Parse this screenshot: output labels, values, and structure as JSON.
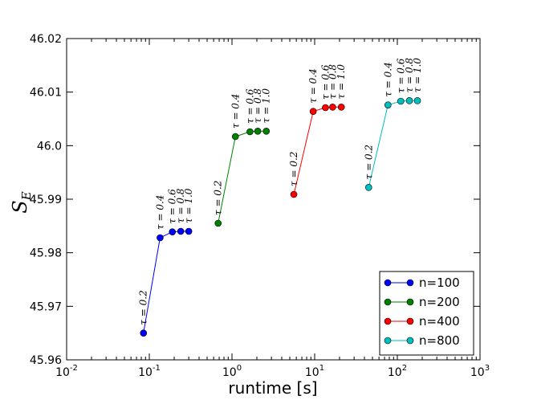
{
  "chart_data": {
    "type": "line",
    "title": "",
    "xlabel": "runtime [s]",
    "ylabel": "S_E",
    "xscale": "log",
    "xlim": [
      0.01,
      1000
    ],
    "ylim": [
      45.96,
      46.02
    ],
    "x_ticks": [
      {
        "value": 0.01,
        "base": "10",
        "exp": "-2"
      },
      {
        "value": 0.1,
        "base": "10",
        "exp": "-1"
      },
      {
        "value": 1,
        "base": "10",
        "exp": "0"
      },
      {
        "value": 10,
        "base": "10",
        "exp": "1"
      },
      {
        "value": 100,
        "base": "10",
        "exp": "2"
      },
      {
        "value": 1000,
        "base": "10",
        "exp": "3"
      }
    ],
    "y_ticks": [
      {
        "value": 45.96,
        "label": "45.96"
      },
      {
        "value": 45.97,
        "label": "45.97"
      },
      {
        "value": 45.98,
        "label": "45.98"
      },
      {
        "value": 45.99,
        "label": "45.99"
      },
      {
        "value": 46.0,
        "label": "46.0"
      },
      {
        "value": 46.01,
        "label": "46.01"
      },
      {
        "value": 46.02,
        "label": "46.02"
      }
    ],
    "legend_position": "bottom-right",
    "series": [
      {
        "name": "n=100",
        "color": "#0000ff",
        "x": [
          0.085,
          0.135,
          0.19,
          0.24,
          0.3
        ],
        "y": [
          45.965,
          45.9828,
          45.9839,
          45.984,
          45.984
        ],
        "point_labels": [
          "τ = 0.2",
          "τ = 0.4",
          "τ = 0.6",
          "τ = 0.8",
          "τ = 1.0"
        ]
      },
      {
        "name": "n=200",
        "color": "#008000",
        "x": [
          0.68,
          1.1,
          1.65,
          2.05,
          2.6
        ],
        "y": [
          45.9855,
          46.0017,
          46.0026,
          46.0027,
          46.0027
        ],
        "point_labels": [
          "τ = 0.2",
          "τ = 0.4",
          "τ = 0.6",
          "τ = 0.8",
          "τ = 1.0"
        ]
      },
      {
        "name": "n=400",
        "color": "#ff0000",
        "x": [
          5.6,
          9.6,
          13.5,
          16.5,
          21
        ],
        "y": [
          45.9909,
          46.0064,
          46.0071,
          46.0072,
          46.0072
        ],
        "point_labels": [
          "τ = 0.2",
          "τ = 0.4",
          "τ = 0.6",
          "τ = 0.8",
          "τ = 1.0"
        ]
      },
      {
        "name": "n=800",
        "color": "#00bfbf",
        "x": [
          45,
          77,
          110,
          140,
          175
        ],
        "y": [
          45.9922,
          46.0076,
          46.0083,
          46.0084,
          46.0084
        ],
        "point_labels": [
          "τ = 0.2",
          "τ = 0.4",
          "τ = 0.6",
          "τ = 0.8",
          "τ = 1.0"
        ]
      }
    ]
  }
}
